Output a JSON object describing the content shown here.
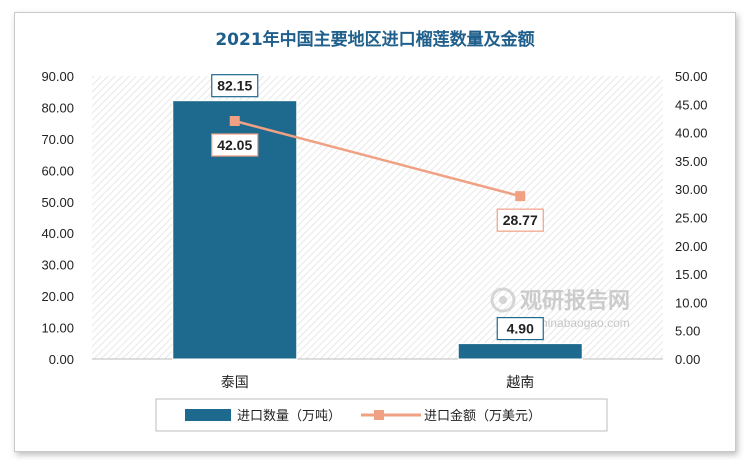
{
  "chart_data": {
    "type": "bar+line",
    "title": "2021年中国主要地区进口榴莲数量及金额",
    "categories": [
      "泰国",
      "越南"
    ],
    "series": [
      {
        "name": "进口数量（万吨）",
        "type": "bar",
        "axis": "left",
        "values": [
          82.15,
          4.9
        ],
        "labels": [
          "82.15",
          "4.90"
        ],
        "color": "#1e6a8e"
      },
      {
        "name": "进口金额（万美元）",
        "type": "line",
        "axis": "right",
        "values": [
          42.05,
          28.77
        ],
        "labels": [
          "42.05",
          "28.77"
        ],
        "color": "#f0a083"
      }
    ],
    "y_left": {
      "min": 0,
      "max": 90,
      "step": 10,
      "ticks": [
        "0.00",
        "10.00",
        "20.00",
        "30.00",
        "40.00",
        "50.00",
        "60.00",
        "70.00",
        "80.00",
        "90.00"
      ]
    },
    "y_right": {
      "min": 0,
      "max": 50,
      "step": 5,
      "ticks": [
        "0.00",
        "5.00",
        "10.00",
        "15.00",
        "20.00",
        "25.00",
        "30.00",
        "35.00",
        "40.00",
        "45.00",
        "50.00"
      ]
    },
    "legend_position": "bottom",
    "grid": false
  },
  "watermark": {
    "name": "观研报告网",
    "url": "chinabaogao.com"
  }
}
